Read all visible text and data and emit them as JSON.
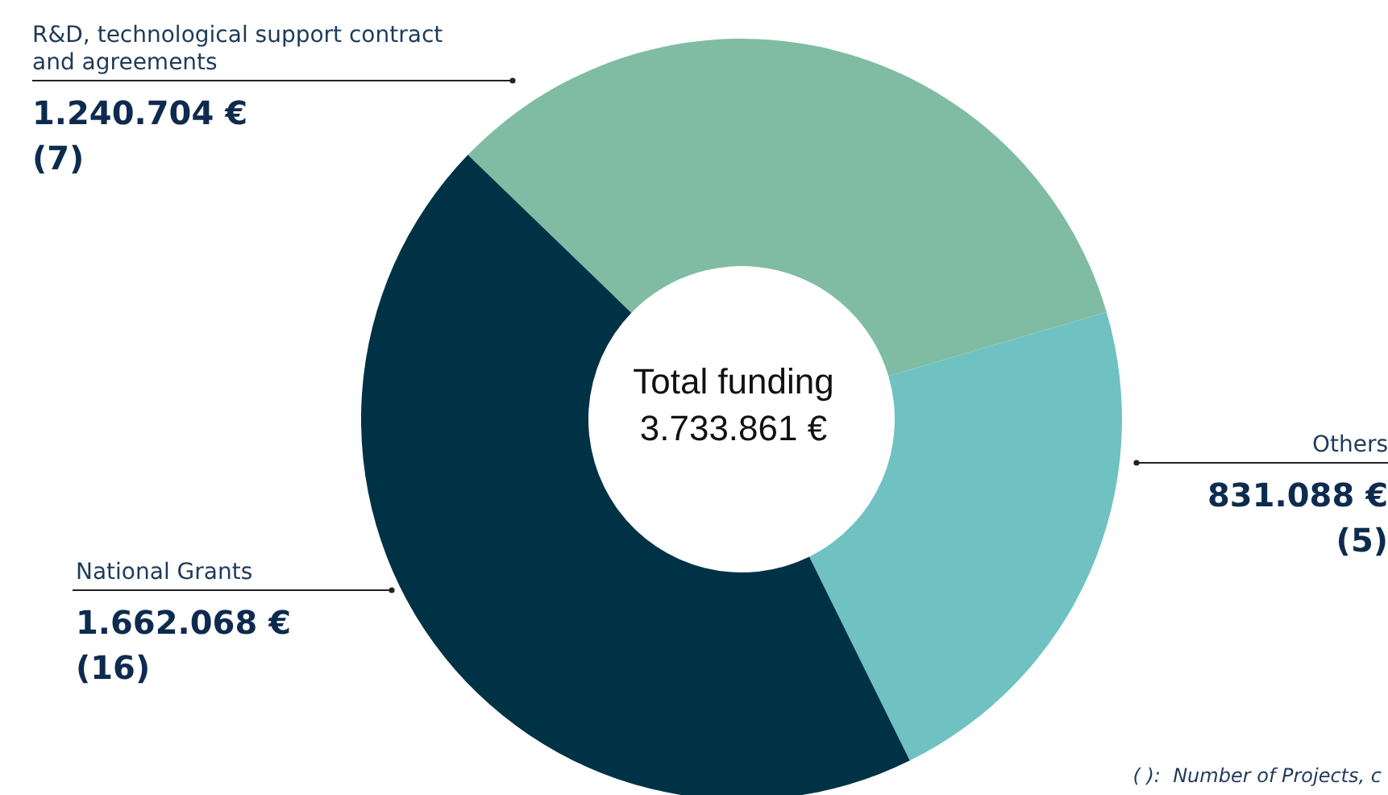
{
  "chart_data": {
    "type": "donut",
    "categories": [
      "R&D, technological support contract and agreements",
      "Others",
      "National Grants"
    ],
    "values": [
      1240704,
      831088,
      1662068
    ],
    "colors": [
      "#80bca3",
      "#70c1c2",
      "#003246"
    ],
    "value_labels": [
      "1.240.704 €\n(7)",
      "831.088 €\n(5)",
      "1.662.068 €\n(16)"
    ],
    "annotations": [
      "Total funding",
      "3.733.861 €",
      "( ):  Number of Projects, c"
    ]
  }
}
